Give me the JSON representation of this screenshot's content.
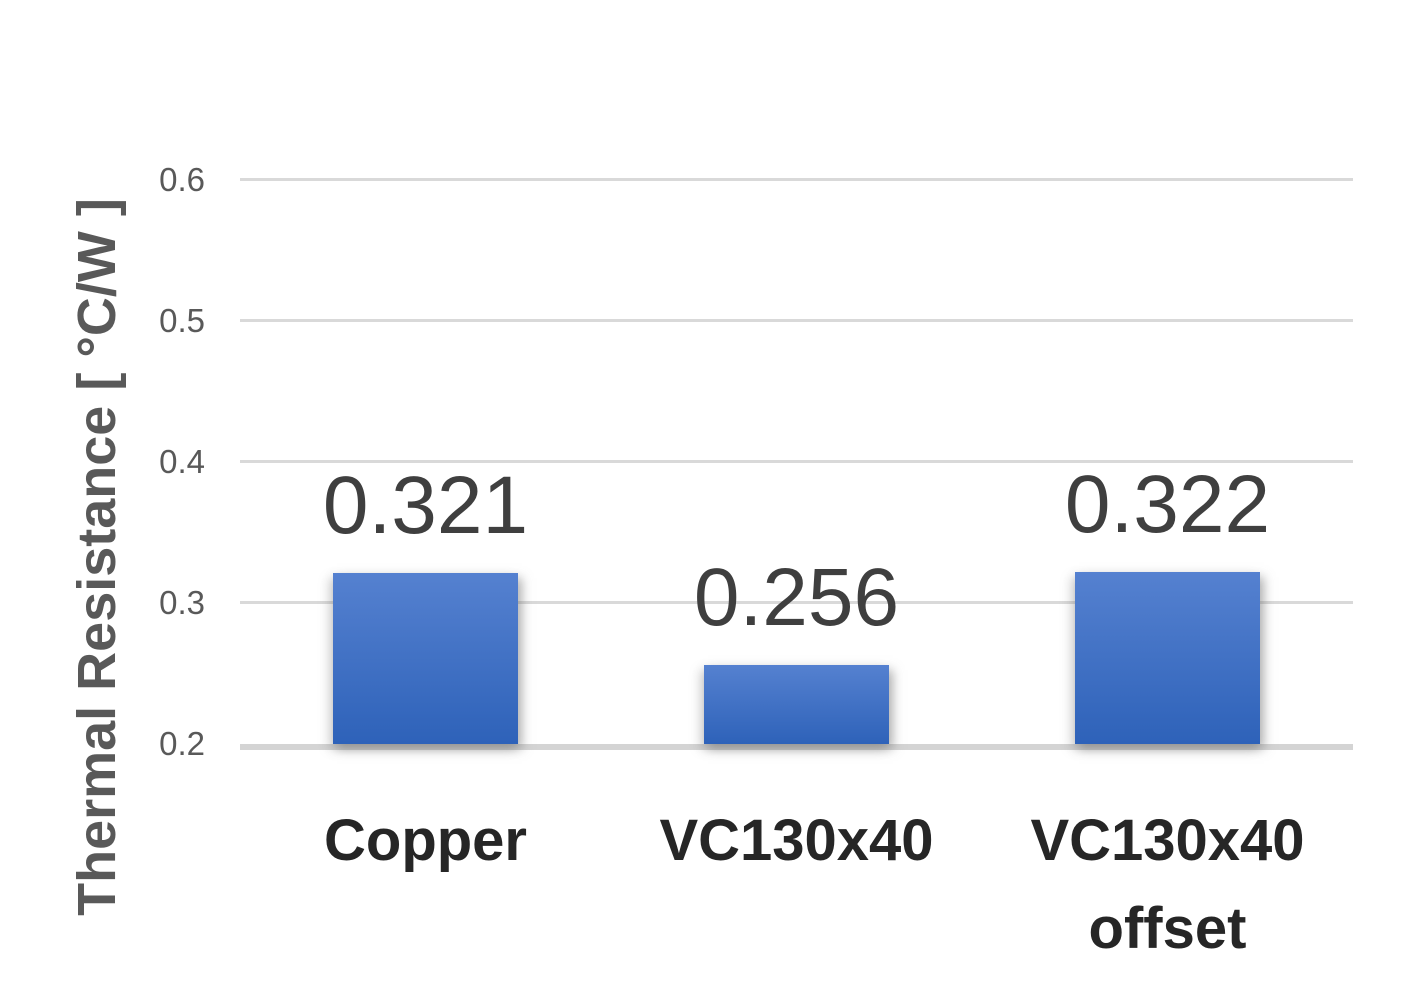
{
  "chart_data": {
    "type": "bar",
    "title": "",
    "xlabel": "",
    "ylabel": "Thermal Resistance [ °C/W ]",
    "categories": [
      "Copper",
      "VC130x40",
      "VC130x40 offset"
    ],
    "category_display": [
      "Copper",
      "VC130x40",
      "VC130x40\noffset"
    ],
    "values": [
      0.321,
      0.256,
      0.322
    ],
    "value_labels": [
      "0.321",
      "0.256",
      "0.322"
    ],
    "ylim": [
      0.2,
      0.6
    ],
    "yticks": [
      0.2,
      0.3,
      0.4,
      0.5,
      0.6
    ],
    "ytick_labels": [
      "0.2",
      "0.3",
      "0.4",
      "0.5",
      "0.6"
    ],
    "grid": true,
    "legend_position": "none",
    "colors": {
      "bar_gradient_top": "#5581d0",
      "bar_gradient_bottom": "#2e62b9",
      "gridline": "#d9d9d9",
      "baseline": "#d4d4d4",
      "tick_label": "#595959",
      "value_label": "#3f3f3f",
      "category_label": "#262626",
      "ylabel": "#595959"
    }
  }
}
